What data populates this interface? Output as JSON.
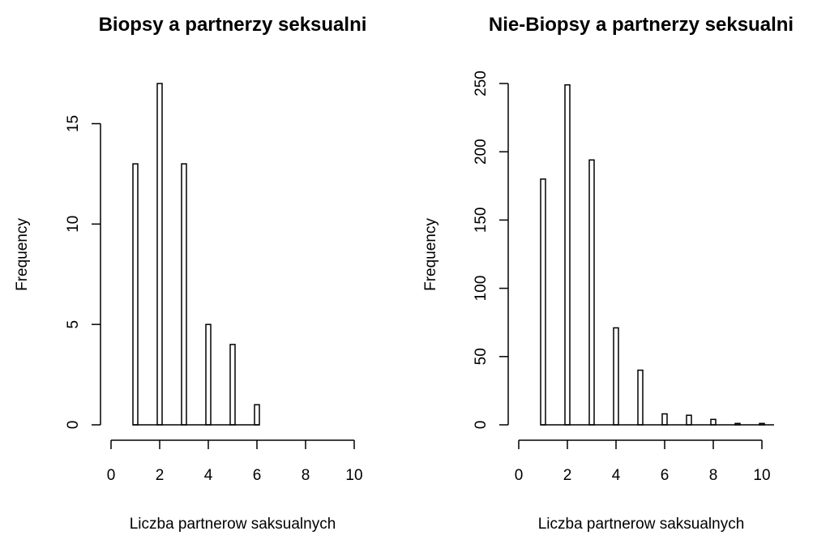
{
  "chart_data": [
    {
      "type": "bar",
      "title": "Biopsy a partnerzy seksualni",
      "xlabel": "Liczba partnerow saksualnych",
      "ylabel": "Frequency",
      "x": [
        1,
        2,
        3,
        4,
        5,
        6
      ],
      "values": [
        13,
        17,
        13,
        5,
        4,
        1
      ],
      "xlim": [
        0,
        10
      ],
      "ylim": [
        0,
        17
      ],
      "xticks": [
        0,
        2,
        4,
        6,
        8,
        10
      ],
      "yticks": [
        0,
        5,
        10,
        15
      ],
      "grid": false
    },
    {
      "type": "bar",
      "title": "Nie-Biopsy a partnerzy seksualni",
      "xlabel": "Liczba partnerow saksualnych",
      "ylabel": "Frequency",
      "x": [
        1,
        2,
        3,
        4,
        5,
        6,
        7,
        8,
        9,
        10
      ],
      "values": [
        180,
        249,
        194,
        71,
        40,
        8,
        7,
        4,
        1,
        1
      ],
      "xlim": [
        0,
        10
      ],
      "ylim": [
        0,
        250
      ],
      "xticks": [
        0,
        2,
        4,
        6,
        8,
        10
      ],
      "yticks": [
        0,
        50,
        100,
        150,
        200,
        250
      ],
      "grid": false
    }
  ]
}
